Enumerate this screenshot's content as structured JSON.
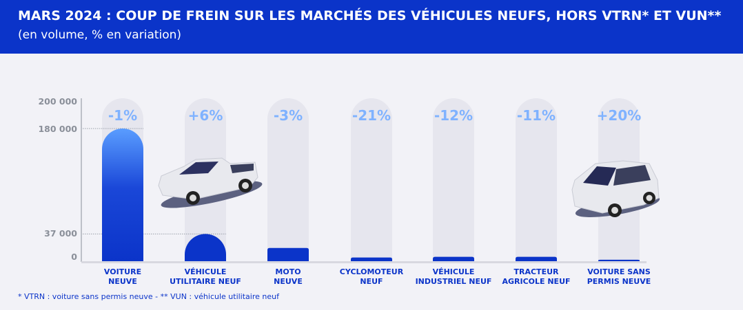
{
  "header": {
    "title": "MARS 2024 : COUP DE FREIN SUR LES MARCHÉS DES VÉHICULES NEUFS, HORS VTRN* ET VUN**",
    "subtitle": "(en volume, % en variation)"
  },
  "colors": {
    "header": "#0b34c9",
    "bar": "#0b34c9",
    "bar_top": "#5a9dff",
    "pct": "#7fb2ff",
    "track": "#e6e6ee"
  },
  "chart_data": {
    "type": "bar",
    "categories": [
      [
        "VOITURE",
        "NEUVE"
      ],
      [
        "VÉHICULE",
        "UTILITAIRE NEUF"
      ],
      [
        "MOTO",
        "NEUVE"
      ],
      [
        "CYCLOMOTEUR",
        "NEUF"
      ],
      [
        "VÉHICULE",
        "INDUSTRIEL NEUF"
      ],
      [
        "TRACTEUR",
        "AGRICOLE NEUF"
      ],
      [
        "VOITURE SANS",
        "PERMIS NEUVE"
      ]
    ],
    "values": [
      180000,
      37000,
      18000,
      5000,
      6000,
      6000,
      2000
    ],
    "variations": [
      "-1%",
      "+6%",
      "-3%",
      "-21%",
      "-12%",
      "-11%",
      "+20%"
    ],
    "y_ticks": [
      {
        "value": 0,
        "label": "0"
      },
      {
        "value": 37000,
        "label": "37 000"
      },
      {
        "value": 180000,
        "label": "180 000"
      },
      {
        "value": 200000,
        "label": "200 000"
      }
    ],
    "ylim": [
      0,
      200000
    ],
    "reference_lines": [
      180000,
      37000
    ],
    "icons": [
      "pickup-truck-illustration",
      "small-car-illustration"
    ]
  },
  "footnote": "* VTRN : voiture sans permis neuve - ** VUN : véhicule utilitaire neuf"
}
